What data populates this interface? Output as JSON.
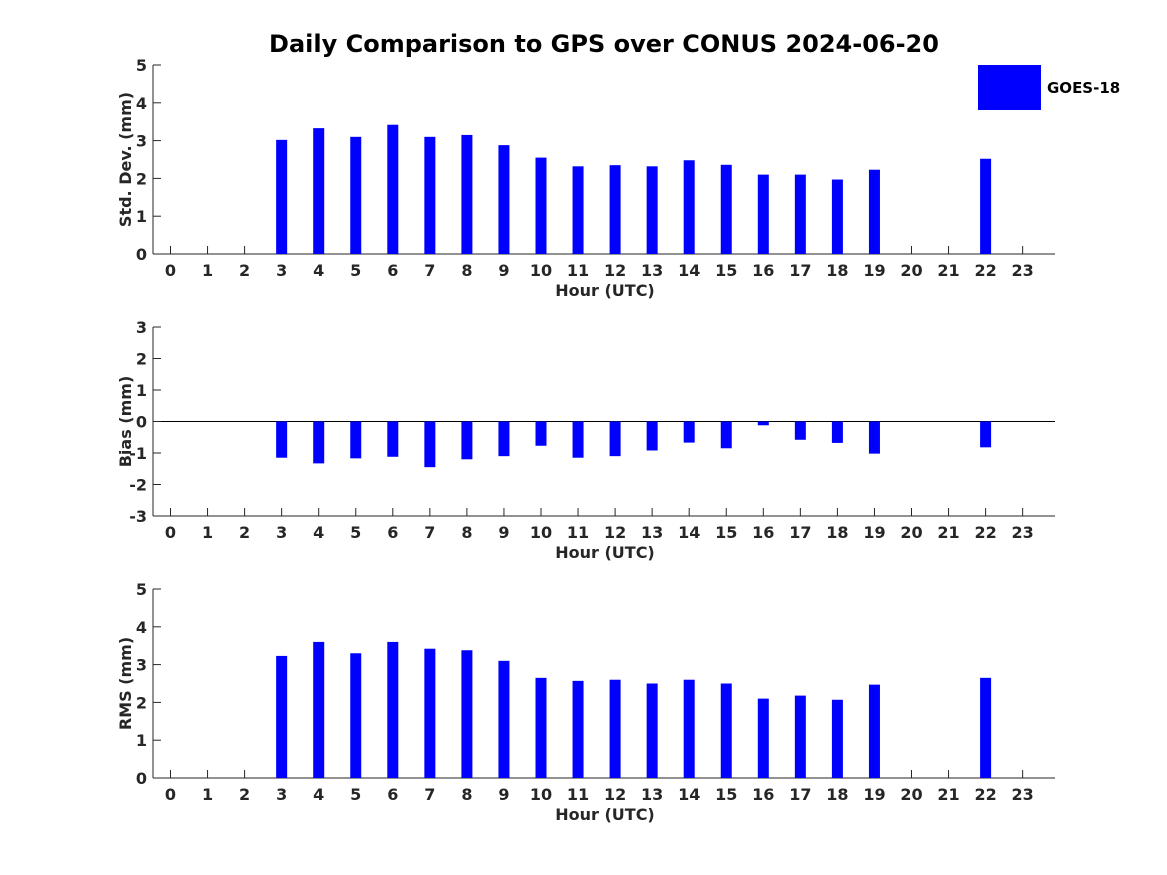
{
  "title": "Daily Comparison to GPS over CONUS 2024-06-20",
  "legend": {
    "label": "GOES-18",
    "color": "#0000ff",
    "placement": "top-right"
  },
  "chart_data": [
    {
      "type": "bar",
      "xlabel": "Hour (UTC)",
      "ylabel": "Std. Dev. (mm)",
      "ylim": [
        0,
        5
      ],
      "yticks": [
        0,
        1,
        2,
        3,
        4,
        5
      ],
      "categories": [
        "0",
        "1",
        "2",
        "3",
        "4",
        "5",
        "6",
        "7",
        "8",
        "9",
        "10",
        "11",
        "12",
        "13",
        "14",
        "15",
        "16",
        "17",
        "18",
        "19",
        "20",
        "21",
        "22",
        "23"
      ],
      "series": [
        {
          "name": "GOES-18",
          "color": "#0000ff",
          "values": [
            null,
            null,
            null,
            3.02,
            3.33,
            3.1,
            3.42,
            3.1,
            3.15,
            2.88,
            2.55,
            2.32,
            2.35,
            2.32,
            2.48,
            2.36,
            2.1,
            2.1,
            1.97,
            2.23,
            null,
            null,
            2.52,
            null
          ]
        }
      ]
    },
    {
      "type": "bar",
      "xlabel": "Hour (UTC)",
      "ylabel": "Bias (mm)",
      "ylim": [
        -3,
        3
      ],
      "yticks": [
        -3,
        -2,
        -1,
        0,
        1,
        2,
        3
      ],
      "categories": [
        "0",
        "1",
        "2",
        "3",
        "4",
        "5",
        "6",
        "7",
        "8",
        "9",
        "10",
        "11",
        "12",
        "13",
        "14",
        "15",
        "16",
        "17",
        "18",
        "19",
        "20",
        "21",
        "22",
        "23"
      ],
      "series": [
        {
          "name": "GOES-18",
          "color": "#0000ff",
          "values": [
            null,
            null,
            null,
            -1.15,
            -1.33,
            -1.17,
            -1.12,
            -1.45,
            -1.2,
            -1.1,
            -0.77,
            -1.15,
            -1.1,
            -0.92,
            -0.67,
            -0.85,
            -0.12,
            -0.58,
            -0.68,
            -1.02,
            null,
            null,
            -0.82,
            null
          ]
        }
      ]
    },
    {
      "type": "bar",
      "xlabel": "Hour (UTC)",
      "ylabel": "RMS (mm)",
      "ylim": [
        0,
        5
      ],
      "yticks": [
        0,
        1,
        2,
        3,
        4,
        5
      ],
      "categories": [
        "0",
        "1",
        "2",
        "3",
        "4",
        "5",
        "6",
        "7",
        "8",
        "9",
        "10",
        "11",
        "12",
        "13",
        "14",
        "15",
        "16",
        "17",
        "18",
        "19",
        "20",
        "21",
        "22",
        "23"
      ],
      "series": [
        {
          "name": "GOES-18",
          "color": "#0000ff",
          "values": [
            null,
            null,
            null,
            3.23,
            3.6,
            3.3,
            3.6,
            3.42,
            3.38,
            3.1,
            2.65,
            2.57,
            2.6,
            2.5,
            2.6,
            2.5,
            2.1,
            2.18,
            2.07,
            2.47,
            null,
            null,
            2.65,
            null
          ]
        }
      ]
    }
  ]
}
